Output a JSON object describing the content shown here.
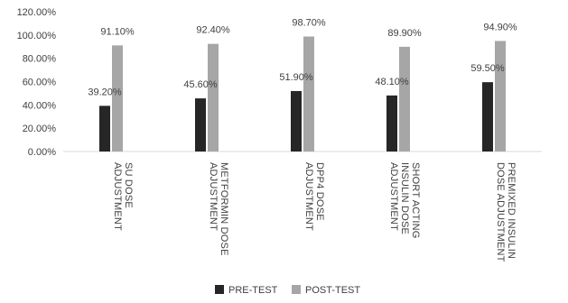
{
  "chart_data": {
    "type": "bar",
    "title": "",
    "xlabel": "",
    "ylabel": "",
    "ylim": [
      0,
      120
    ],
    "yticks": [
      "0.00%",
      "20.00%",
      "40.00%",
      "60.00%",
      "80.00%",
      "100.00%",
      "120.00%"
    ],
    "grid": false,
    "legend_position": "bottom",
    "categories": [
      [
        "SU DOSE",
        "ADJUSTMENT"
      ],
      [
        "METFORMIN DOSE",
        "ADJUSTMENT"
      ],
      [
        "DPP4 DOSE",
        "ADJUSTMENT"
      ],
      [
        "SHORT ACTING",
        "INSULIN DOSE",
        "ADJUSTMENT"
      ],
      [
        "PREMIXED INSULIN",
        "DOSE ADJUSTMENT"
      ]
    ],
    "series": [
      {
        "name": "PRE-TEST",
        "color": "#262626",
        "values": [
          39.2,
          45.6,
          51.9,
          48.1,
          59.5
        ],
        "labels": [
          "39.20%",
          "45.60%",
          "51.90%",
          "48.10%",
          "59.50%"
        ]
      },
      {
        "name": "POST-TEST",
        "color": "#a6a6a6",
        "values": [
          91.1,
          92.4,
          98.7,
          89.9,
          94.9
        ],
        "labels": [
          "91.10%",
          "92.40%",
          "98.70%",
          "89.90%",
          "94.90%"
        ]
      }
    ]
  }
}
